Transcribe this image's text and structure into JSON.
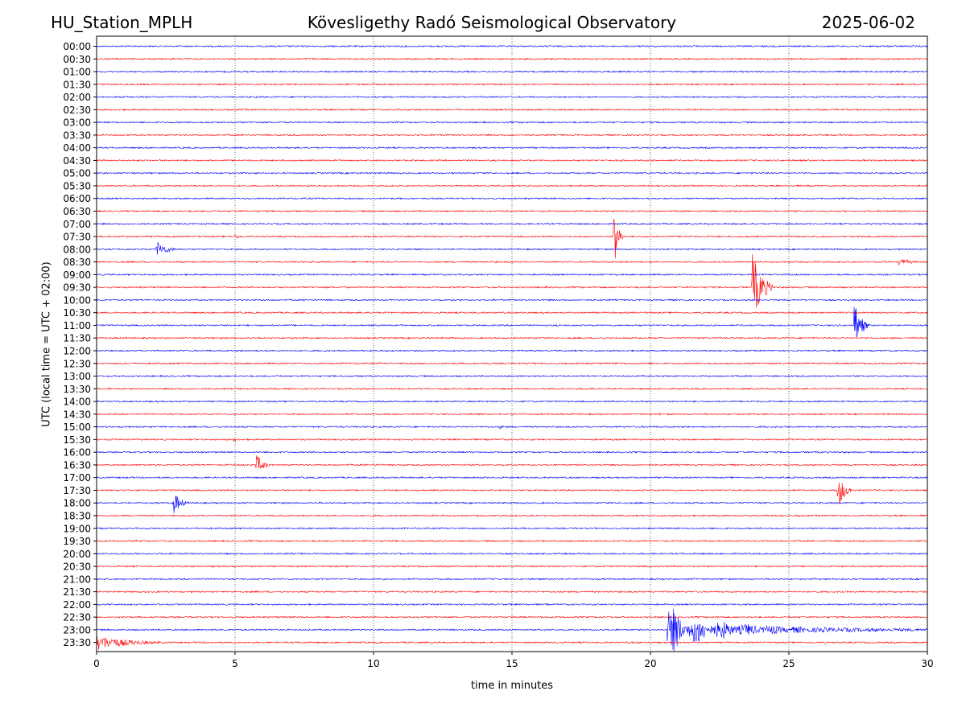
{
  "header": {
    "station": "HU_Station_MPLH",
    "title": "Kövesligethy Radó Seismological Observatory",
    "date": "2025-06-02"
  },
  "chart_data": {
    "type": "line",
    "title": "Kövesligethy Radó Seismological Observatory",
    "xlabel": "time in minutes",
    "ylabel": "UTC (local time = UTC + 02:00)",
    "xlim": [
      0,
      30
    ],
    "xticks": [
      "0",
      "5",
      "10",
      "15",
      "20",
      "25",
      "30"
    ],
    "grid_x": true,
    "colors": [
      "#0000ff",
      "#ff0000"
    ],
    "rows": [
      "00:00",
      "00:30",
      "01:00",
      "01:30",
      "02:00",
      "02:30",
      "03:00",
      "03:30",
      "04:00",
      "04:30",
      "05:00",
      "05:30",
      "06:00",
      "06:30",
      "07:00",
      "07:30",
      "08:00",
      "08:30",
      "09:00",
      "09:30",
      "10:00",
      "10:30",
      "11:00",
      "11:30",
      "12:00",
      "12:30",
      "13:00",
      "13:30",
      "14:00",
      "14:30",
      "15:00",
      "15:30",
      "16:00",
      "16:30",
      "17:00",
      "17:30",
      "18:00",
      "18:30",
      "19:00",
      "19:30",
      "20:00",
      "20:30",
      "21:00",
      "21:30",
      "22:00",
      "22:30",
      "23:00",
      "23:30"
    ],
    "events": [
      {
        "row": "07:30",
        "t": 5.0,
        "amp": 0.25,
        "dur": 0.5
      },
      {
        "row": "07:30",
        "t": 18.7,
        "amp": 3.5,
        "dur": 0.3
      },
      {
        "row": "08:00",
        "t": 2.2,
        "amp": 0.8,
        "dur": 0.8
      },
      {
        "row": "08:30",
        "t": 29.0,
        "amp": 0.35,
        "dur": 1.0
      },
      {
        "row": "09:30",
        "t": 23.7,
        "amp": 3.5,
        "dur": 0.7
      },
      {
        "row": "11:00",
        "t": 27.4,
        "amp": 2.2,
        "dur": 0.5
      },
      {
        "row": "15:00",
        "t": 14.6,
        "amp": 0.2,
        "dur": 0.5
      },
      {
        "row": "15:30",
        "t": 5.0,
        "amp": 0.2,
        "dur": 0.2
      },
      {
        "row": "16:30",
        "t": 5.8,
        "amp": 1.0,
        "dur": 0.5
      },
      {
        "row": "17:30",
        "t": 26.8,
        "amp": 1.8,
        "dur": 0.5
      },
      {
        "row": "18:00",
        "t": 2.8,
        "amp": 1.2,
        "dur": 0.5
      },
      {
        "row": "23:30",
        "t": 0.0,
        "amp": 0.8,
        "dur": 2.5
      },
      {
        "row": "23:00",
        "t": 20.6,
        "amp": 26.0,
        "dur": 9.4
      }
    ]
  }
}
